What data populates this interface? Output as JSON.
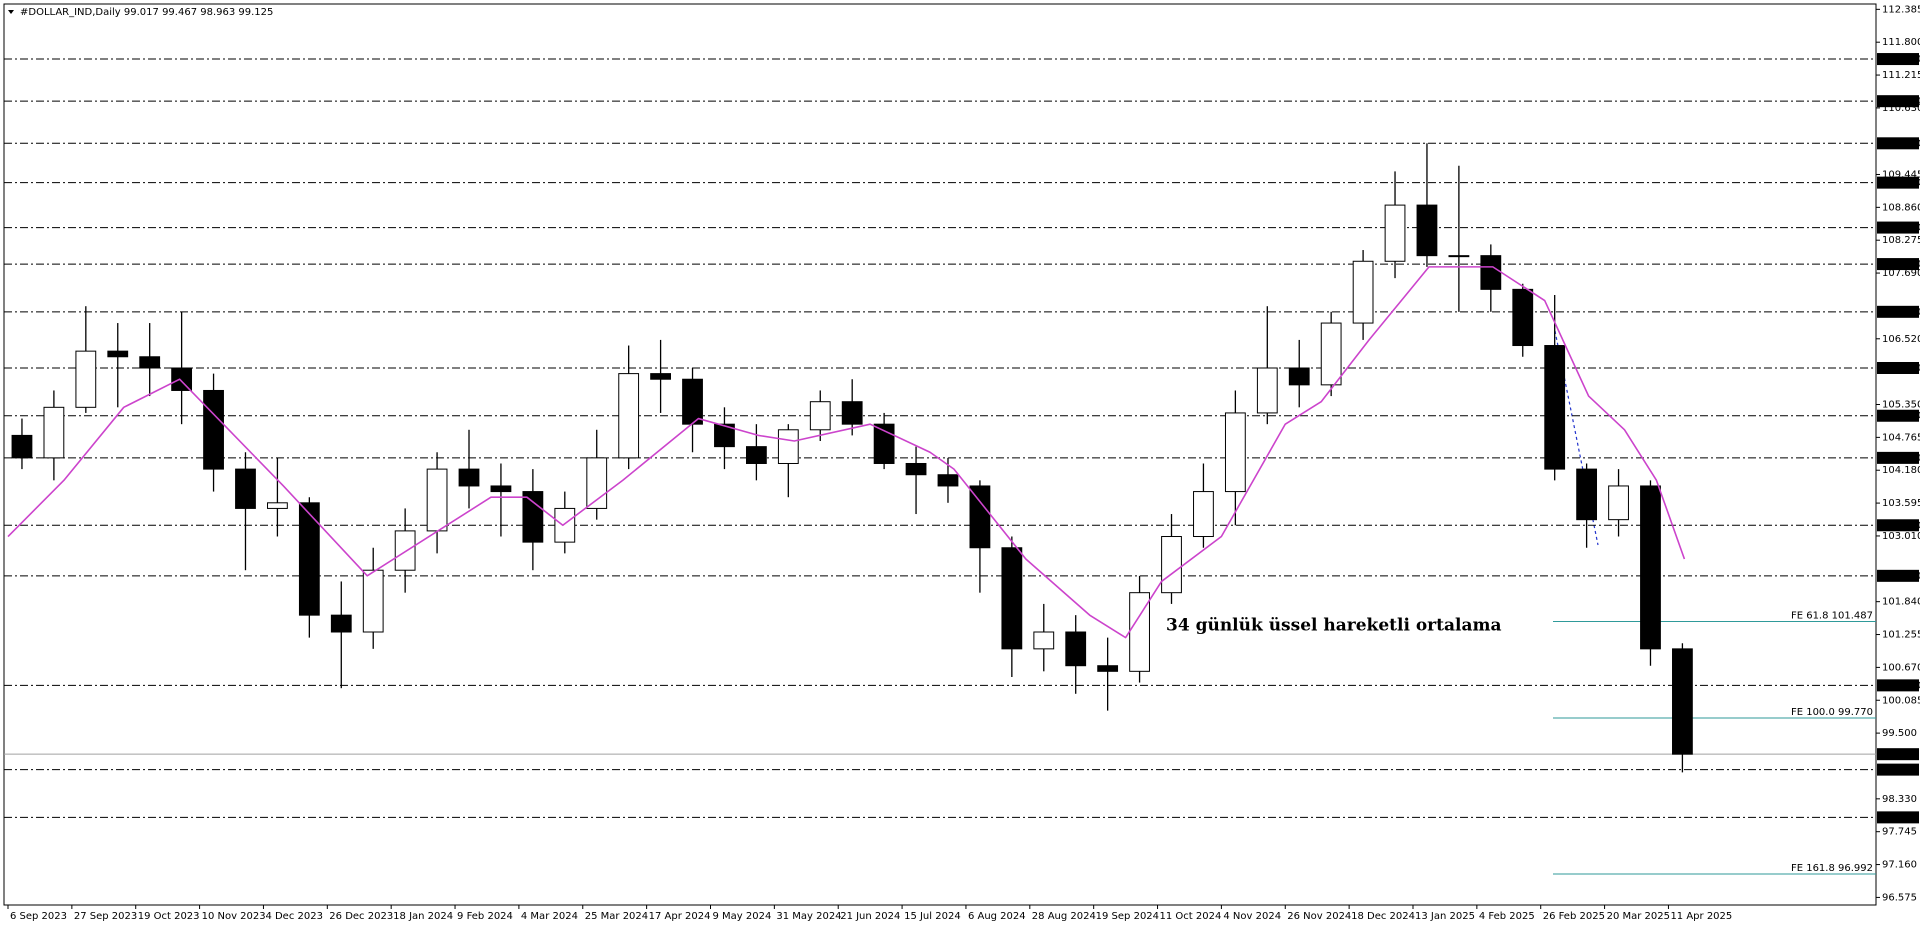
{
  "chart_data": {
    "type": "candlestick",
    "title": "#DOLLAR_IND,Daily  99.017 99.467 98.963 99.125",
    "xlim": [
      -1,
      468
    ],
    "ylim": [
      96.44,
      112.48
    ],
    "xticks": [
      {
        "value": 0,
        "label": "6 Sep 2023"
      },
      {
        "value": 16,
        "label": "27 Sep 2023"
      },
      {
        "value": 32,
        "label": "19 Oct 2023"
      },
      {
        "value": 48,
        "label": "10 Nov 2023"
      },
      {
        "value": 64,
        "label": "4 Dec 2023"
      },
      {
        "value": 80,
        "label": "26 Dec 2023"
      },
      {
        "value": 96,
        "label": "18 Jan 2024"
      },
      {
        "value": 112,
        "label": "9 Feb 2024"
      },
      {
        "value": 128,
        "label": "4 Mar 2024"
      },
      {
        "value": 144,
        "label": "25 Mar 2024"
      },
      {
        "value": 160,
        "label": "17 Apr 2024"
      },
      {
        "value": 176,
        "label": "9 May 2024"
      },
      {
        "value": 192,
        "label": "31 May 2024"
      },
      {
        "value": 208,
        "label": "21 Jun 2024"
      },
      {
        "value": 224,
        "label": "15 Jul 2024"
      },
      {
        "value": 240,
        "label": "6 Aug 2024"
      },
      {
        "value": 256,
        "label": "28 Aug 2024"
      },
      {
        "value": 272,
        "label": "19 Sep 2024"
      },
      {
        "value": 288,
        "label": "11 Oct 2024"
      },
      {
        "value": 304,
        "label": "4 Nov 2024"
      },
      {
        "value": 320,
        "label": "26 Nov 2024"
      },
      {
        "value": 336,
        "label": "18 Dec 2024"
      },
      {
        "value": 352,
        "label": "13 Jan 2025"
      },
      {
        "value": 368,
        "label": "4 Feb 2025"
      },
      {
        "value": 384,
        "label": "26 Feb 2025"
      },
      {
        "value": 400,
        "label": "20 Mar 2025"
      },
      {
        "value": 416,
        "label": "11 Apr 2025"
      }
    ],
    "yticks": [
      {
        "value": 112.385,
        "label": "112.385"
      },
      {
        "value": 111.8,
        "label": "111.800"
      },
      {
        "value": 111.215,
        "label": "111.215"
      },
      {
        "value": 110.63,
        "label": "110.630"
      },
      {
        "value": 109.445,
        "label": "109.445"
      },
      {
        "value": 108.86,
        "label": "108.860"
      },
      {
        "value": 108.275,
        "label": "108.275"
      },
      {
        "value": 107.69,
        "label": "107.690"
      },
      {
        "value": 106.52,
        "label": "106.520"
      },
      {
        "value": 105.35,
        "label": "105.350"
      },
      {
        "value": 104.765,
        "label": "104.765"
      },
      {
        "value": 104.18,
        "label": "104.180"
      },
      {
        "value": 103.595,
        "label": "103.595"
      },
      {
        "value": 103.01,
        "label": "103.010"
      },
      {
        "value": 101.84,
        "label": "101.840"
      },
      {
        "value": 101.255,
        "label": "101.255"
      },
      {
        "value": 100.67,
        "label": "100.670"
      },
      {
        "value": 100.085,
        "label": "100.085"
      },
      {
        "value": 99.5,
        "label": "99.500"
      },
      {
        "value": 98.33,
        "label": "98.330"
      },
      {
        "value": 97.745,
        "label": "97.745"
      },
      {
        "value": 97.16,
        "label": "97.160"
      },
      {
        "value": 96.575,
        "label": "96.575"
      }
    ],
    "candles": {
      "x": [
        3.5,
        11.5,
        19.5,
        27.5,
        35.5,
        43.5,
        51.5,
        59.5,
        67.5,
        75.5,
        83.5,
        91.5,
        99.5,
        107.5,
        115.5,
        123.5,
        131.5,
        139.5,
        147.5,
        155.5,
        163.5,
        171.5,
        179.5,
        187.5,
        195.5,
        203.5,
        211.5,
        219.5,
        227.5,
        235.5,
        243.5,
        251.5,
        259.5,
        267.5,
        275.5,
        283.5,
        291.5,
        299.5,
        307.5,
        315.5,
        323.5,
        331.5,
        339.5,
        347.5,
        355.5,
        363.5,
        371.5,
        379.5,
        387.5,
        395.5,
        403.5,
        411.5,
        419.5
      ],
      "open": [
        104.8,
        104.4,
        105.3,
        106.3,
        106.2,
        106.0,
        105.6,
        104.2,
        103.5,
        103.6,
        101.6,
        101.3,
        102.4,
        103.1,
        104.2,
        103.9,
        103.8,
        102.9,
        103.5,
        104.4,
        105.9,
        105.8,
        105.0,
        104.6,
        104.3,
        104.9,
        105.4,
        105.0,
        104.3,
        104.1,
        103.9,
        102.8,
        101.0,
        101.3,
        100.7,
        100.6,
        102.0,
        103.0,
        103.8,
        105.2,
        106.0,
        105.7,
        106.8,
        107.9,
        108.9,
        108.0,
        108.0,
        107.4,
        106.4,
        104.2,
        103.3,
        103.9,
        101.0
      ],
      "high": [
        105.1,
        105.6,
        107.1,
        106.8,
        106.8,
        107.0,
        105.9,
        104.5,
        104.4,
        103.7,
        102.2,
        102.8,
        103.5,
        104.5,
        104.9,
        104.3,
        104.2,
        103.8,
        104.9,
        106.4,
        106.5,
        106.0,
        105.3,
        105.0,
        105.0,
        105.6,
        105.8,
        105.2,
        104.6,
        104.4,
        104.0,
        103.0,
        101.8,
        101.6,
        101.2,
        102.3,
        103.4,
        104.3,
        105.6,
        107.1,
        106.5,
        107.0,
        108.1,
        109.5,
        110.0,
        109.6,
        108.2,
        107.5,
        107.3,
        104.3,
        104.2,
        104.0,
        101.1
      ],
      "low": [
        104.2,
        104.0,
        105.2,
        105.3,
        105.5,
        105.0,
        103.8,
        102.4,
        103.0,
        101.2,
        100.3,
        101.0,
        102.0,
        102.7,
        103.5,
        103.0,
        102.4,
        102.7,
        103.3,
        104.2,
        105.2,
        104.5,
        104.2,
        104.0,
        103.7,
        104.7,
        104.8,
        104.2,
        103.4,
        103.6,
        102.0,
        100.5,
        100.6,
        100.2,
        99.9,
        100.4,
        101.8,
        102.8,
        103.2,
        105.0,
        105.3,
        105.5,
        106.5,
        107.6,
        107.8,
        107.0,
        107.0,
        106.2,
        104.0,
        102.8,
        103.0,
        100.7,
        98.8
      ],
      "close": [
        104.4,
        105.3,
        106.3,
        106.2,
        106.0,
        105.6,
        104.2,
        103.5,
        103.6,
        101.6,
        101.3,
        102.4,
        103.1,
        104.2,
        103.9,
        103.8,
        102.9,
        103.5,
        104.4,
        105.9,
        105.8,
        105.0,
        104.6,
        104.3,
        104.9,
        105.4,
        105.0,
        104.3,
        104.1,
        103.9,
        102.8,
        101.0,
        101.3,
        100.7,
        100.6,
        102.0,
        103.0,
        103.8,
        105.2,
        106.0,
        105.7,
        106.8,
        107.9,
        108.9,
        108.0,
        108.0,
        107.4,
        106.4,
        104.2,
        103.3,
        103.9,
        101.0,
        99.125
      ],
      "up_color": "#ffffff",
      "down_color": "#000000",
      "edge_color": "#000000"
    },
    "ema": {
      "x": [
        0,
        14,
        29,
        43,
        69,
        90,
        121,
        130,
        139,
        154,
        173,
        188,
        197,
        216,
        231,
        237,
        255,
        271,
        280,
        289,
        304,
        320,
        329,
        341,
        356,
        372,
        385,
        396,
        405,
        413,
        420
      ],
      "values": [
        103.0,
        104.0,
        105.3,
        105.8,
        103.9,
        102.3,
        103.7,
        103.7,
        103.2,
        104.0,
        105.1,
        104.8,
        104.7,
        105.0,
        104.5,
        104.2,
        102.6,
        101.6,
        101.2,
        102.2,
        103.0,
        105.0,
        105.4,
        106.5,
        107.8,
        107.8,
        107.2,
        105.5,
        104.9,
        104.0,
        102.6
      ],
      "color": "#cc44cc"
    },
    "levels": [
      {
        "value": 111.5,
        "label": "111.500"
      },
      {
        "value": 110.75,
        "label": "110.750"
      },
      {
        "value": 110.0,
        "label": "110.000"
      },
      {
        "value": 109.3,
        "label": "109.300"
      },
      {
        "value": 108.5,
        "label": "108.500"
      },
      {
        "value": 107.85,
        "label": "107.850"
      },
      {
        "value": 107.0,
        "label": "107.000"
      },
      {
        "value": 106.0,
        "label": "106.000"
      },
      {
        "value": 105.15,
        "label": "105.150"
      },
      {
        "value": 104.4,
        "label": "104.400"
      },
      {
        "value": 103.2,
        "label": "103.200"
      },
      {
        "value": 102.3,
        "label": "102.300"
      },
      {
        "value": 100.35,
        "label": "100.350"
      },
      {
        "value": 98.85,
        "label": "98.850"
      },
      {
        "value": 98.0,
        "label": "98.000"
      }
    ],
    "level_color": "#000000",
    "current": {
      "value": 99.125,
      "label": "99.125",
      "color": "#a0a0a0"
    },
    "fe_levels": [
      {
        "value": 101.487,
        "label": "FE 61.8 101.487"
      },
      {
        "value": 99.77,
        "label": "FE 100.0 99.770"
      },
      {
        "value": 96.992,
        "label": "FE 161.8 96.992"
      }
    ],
    "fe_color": "#2f9a9a",
    "annotation": {
      "text": "34 günlük üssel hareketli ortalama",
      "color": "#8b1a8b"
    }
  }
}
